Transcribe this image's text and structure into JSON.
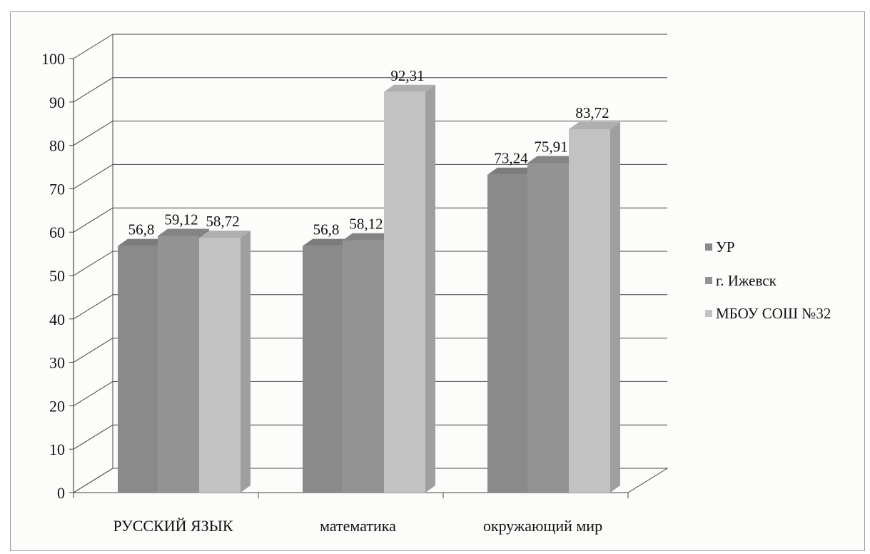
{
  "colors": {
    "УР": "#8a8a8a",
    "г. Ижевск": "#939393",
    "МБОУ СОШ №32": "#c2c2c2",
    "grid": "#444444",
    "frame": "#9a9a9a"
  },
  "chart_data": {
    "type": "bar",
    "categories": [
      "РУССКИЙ ЯЗЫК",
      "математика",
      "окружающий мир"
    ],
    "series": [
      {
        "name": "УР",
        "values": [
          56.8,
          56.8,
          73.24
        ],
        "labels": [
          "56,8",
          "56,8",
          "73,24"
        ]
      },
      {
        "name": "г. Ижевск",
        "values": [
          59.12,
          58.12,
          75.91
        ],
        "labels": [
          "59,12",
          "58,12",
          "75,91"
        ]
      },
      {
        "name": "МБОУ СОШ №32",
        "values": [
          58.72,
          92.31,
          83.72
        ],
        "labels": [
          "58,72",
          "92,31",
          "83,72"
        ]
      }
    ],
    "yticks": [
      "0",
      "10",
      "20",
      "30",
      "40",
      "50",
      "60",
      "70",
      "80",
      "90",
      "100"
    ],
    "ylim": [
      0,
      100
    ],
    "grid": true,
    "legend": "right",
    "three_d": true
  }
}
